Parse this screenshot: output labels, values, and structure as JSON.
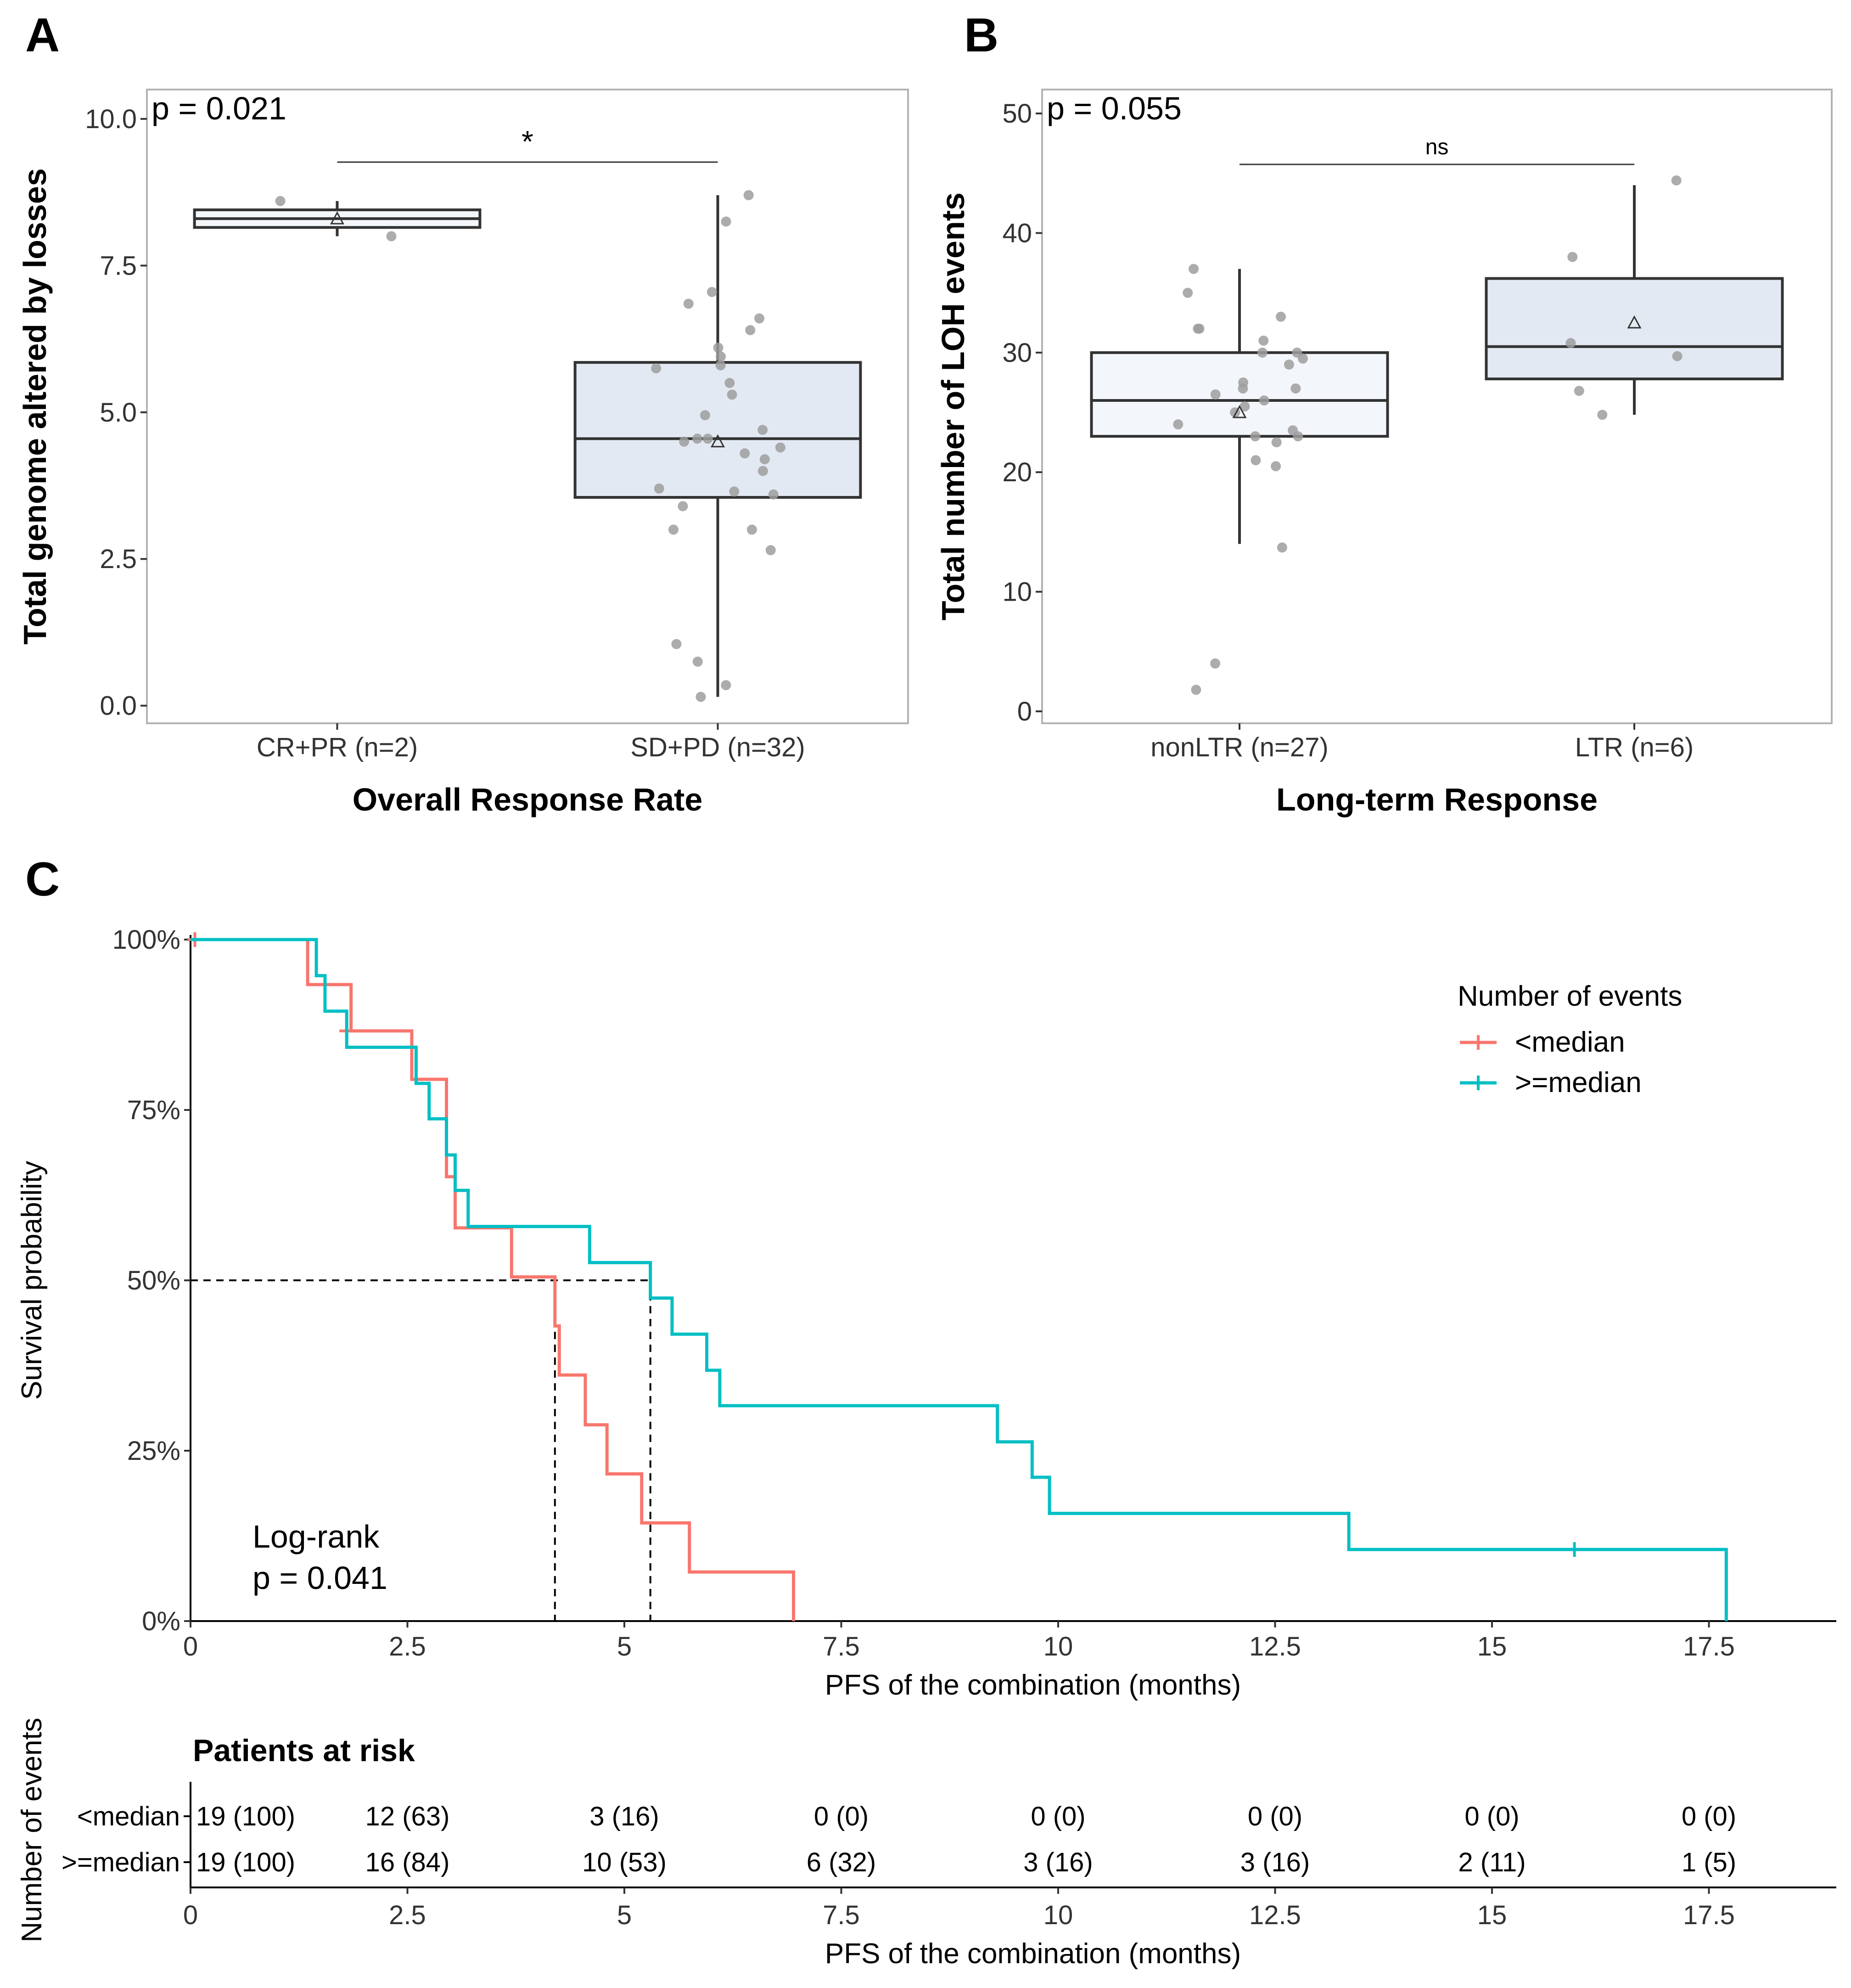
{
  "panels": {
    "a": "A",
    "b": "B",
    "c": "C"
  },
  "colors": {
    "below": "#F8766D",
    "above": "#00BFC4",
    "box_fill": "#E3E9F3",
    "box_fill_light": "#F3F6FA",
    "point": "#9E9E9E",
    "frame": "#B3B3B3"
  },
  "chart_data": [
    {
      "type": "box",
      "panel": "A",
      "ylabel": "Total genome altered by losses",
      "xlabel": "Overall Response Rate",
      "categories": [
        "CR+PR (n=2)",
        "SD+PD (n=32)"
      ],
      "ylim": [
        -0.3,
        10.5
      ],
      "yticks": [
        0.0,
        2.5,
        5.0,
        7.5,
        10.0
      ],
      "ytick_labels": [
        "0.0",
        "2.5",
        "5.0",
        "7.5",
        "10.0"
      ],
      "pvalue": "p = 0.021",
      "significance": "*",
      "boxes": [
        {
          "q1": 8.15,
          "median": 8.3,
          "q3": 8.45,
          "whisker_low": 8.0,
          "whisker_high": 8.6,
          "mean": 8.3,
          "fill": "box_fill_light",
          "points": [
            8.0,
            8.6
          ]
        },
        {
          "q1": 3.55,
          "median": 4.55,
          "q3": 5.85,
          "whisker_low": 0.15,
          "whisker_high": 8.7,
          "mean": 4.5,
          "fill": "box_fill",
          "points": [
            8.7,
            8.25,
            7.05,
            6.85,
            6.6,
            6.4,
            6.1,
            5.95,
            5.8,
            5.75,
            5.5,
            5.3,
            4.95,
            4.7,
            4.55,
            4.55,
            4.5,
            4.4,
            4.3,
            4.2,
            4.0,
            3.7,
            3.65,
            3.6,
            3.4,
            3.0,
            3.0,
            2.65,
            1.05,
            0.75,
            0.35,
            0.15
          ]
        }
      ]
    },
    {
      "type": "box",
      "panel": "B",
      "ylabel": "Total number of LOH events",
      "xlabel": "Long-term Response",
      "categories": [
        "nonLTR (n=27)",
        "LTR (n=6)"
      ],
      "ylim": [
        -1,
        52
      ],
      "yticks": [
        0,
        10,
        20,
        30,
        40,
        50
      ],
      "ytick_labels": [
        "0",
        "10",
        "20",
        "30",
        "40",
        "50"
      ],
      "pvalue": "p = 0.055",
      "significance": "ns",
      "boxes": [
        {
          "q1": 23,
          "median": 26,
          "q3": 30,
          "whisker_low": 14,
          "whisker_high": 37,
          "mean": 25,
          "fill": "box_fill_light",
          "points": [
            37,
            35,
            33,
            32,
            32,
            31,
            30,
            30,
            29.5,
            29,
            27.5,
            27,
            27,
            26.5,
            26,
            25.5,
            25,
            24,
            23.5,
            23,
            23,
            22.5,
            21,
            20.5,
            13.7,
            4,
            1.8
          ]
        },
        {
          "q1": 27.8,
          "median": 30.5,
          "q3": 36.2,
          "whisker_low": 24.8,
          "whisker_high": 44,
          "mean": 32.5,
          "fill": "box_fill",
          "points": [
            44.4,
            38,
            30.8,
            29.7,
            26.8,
            24.8
          ]
        }
      ]
    },
    {
      "type": "line",
      "subtype": "kaplan-meier",
      "panel": "C",
      "ylabel": "Survival probability",
      "xlabel": "PFS of the combination (months)",
      "xlim": [
        0,
        19
      ],
      "ylim": [
        0,
        1
      ],
      "xticks": [
        0,
        2.5,
        5,
        7.5,
        10,
        12.5,
        15,
        17.5
      ],
      "xtick_labels": [
        "0",
        "2.5",
        "5",
        "7.5",
        "10",
        "12.5",
        "15",
        "17.5"
      ],
      "yticks": [
        0,
        0.25,
        0.5,
        0.75,
        1.0
      ],
      "ytick_labels": [
        "0%",
        "25%",
        "50%",
        "75%",
        "100%"
      ],
      "legend_title": "Number of events",
      "legend_position": "top-right",
      "test_label": "Log-rank",
      "pvalue": "p = 0.041",
      "medians": [
        4.2,
        5.3
      ],
      "series": [
        {
          "name": "<median",
          "color": "below",
          "steps": [
            [
              0,
              1.0
            ],
            [
              1.35,
              0.934
            ],
            [
              1.85,
              0.866
            ],
            [
              2.55,
              0.795
            ],
            [
              2.95,
              0.723
            ],
            [
              2.95,
              0.652
            ],
            [
              3.05,
              0.577
            ],
            [
              3.7,
              0.505
            ],
            [
              4.2,
              0.433
            ],
            [
              4.25,
              0.361
            ],
            [
              4.55,
              0.288
            ],
            [
              4.8,
              0.216
            ],
            [
              5.2,
              0.144
            ],
            [
              5.75,
              0.072
            ],
            [
              6.95,
              0.0
            ]
          ],
          "censors": [
            [
              0.05,
              1.0
            ],
            [
              1.8,
              0.866
            ]
          ]
        },
        {
          "name": ">=median",
          "color": "above",
          "steps": [
            [
              0,
              1.0
            ],
            [
              1.45,
              0.947
            ],
            [
              1.55,
              0.895
            ],
            [
              1.8,
              0.842
            ],
            [
              2.6,
              0.789
            ],
            [
              2.75,
              0.737
            ],
            [
              2.95,
              0.684
            ],
            [
              3.05,
              0.632
            ],
            [
              3.2,
              0.579
            ],
            [
              4.6,
              0.526
            ],
            [
              5.3,
              0.474
            ],
            [
              5.55,
              0.421
            ],
            [
              5.95,
              0.368
            ],
            [
              6.1,
              0.316
            ],
            [
              9.3,
              0.263
            ],
            [
              9.7,
              0.211
            ],
            [
              9.9,
              0.158
            ],
            [
              13.35,
              0.105
            ],
            [
              17.7,
              0.0
            ]
          ],
          "censors": [
            [
              15.95,
              0.105
            ]
          ]
        }
      ]
    }
  ],
  "risk_table": {
    "title": "Patients at risk",
    "ylabel": "Number of events",
    "xlabel": "PFS of the combination (months)",
    "rows": [
      {
        "label": "<median",
        "values": [
          "19 (100)",
          "12 (63)",
          "3 (16)",
          "0 (0)",
          "0 (0)",
          "0 (0)",
          "0 (0)",
          "0 (0)"
        ]
      },
      {
        "label": ">=median",
        "values": [
          "19 (100)",
          "16 (84)",
          "10 (53)",
          "6 (32)",
          "3 (16)",
          "3 (16)",
          "2 (11)",
          "1 (5)"
        ]
      }
    ],
    "xticks": [
      0,
      2.5,
      5,
      7.5,
      10,
      12.5,
      15,
      17.5
    ],
    "xtick_labels": [
      "0",
      "2.5",
      "5",
      "7.5",
      "10",
      "12.5",
      "15",
      "17.5"
    ]
  }
}
